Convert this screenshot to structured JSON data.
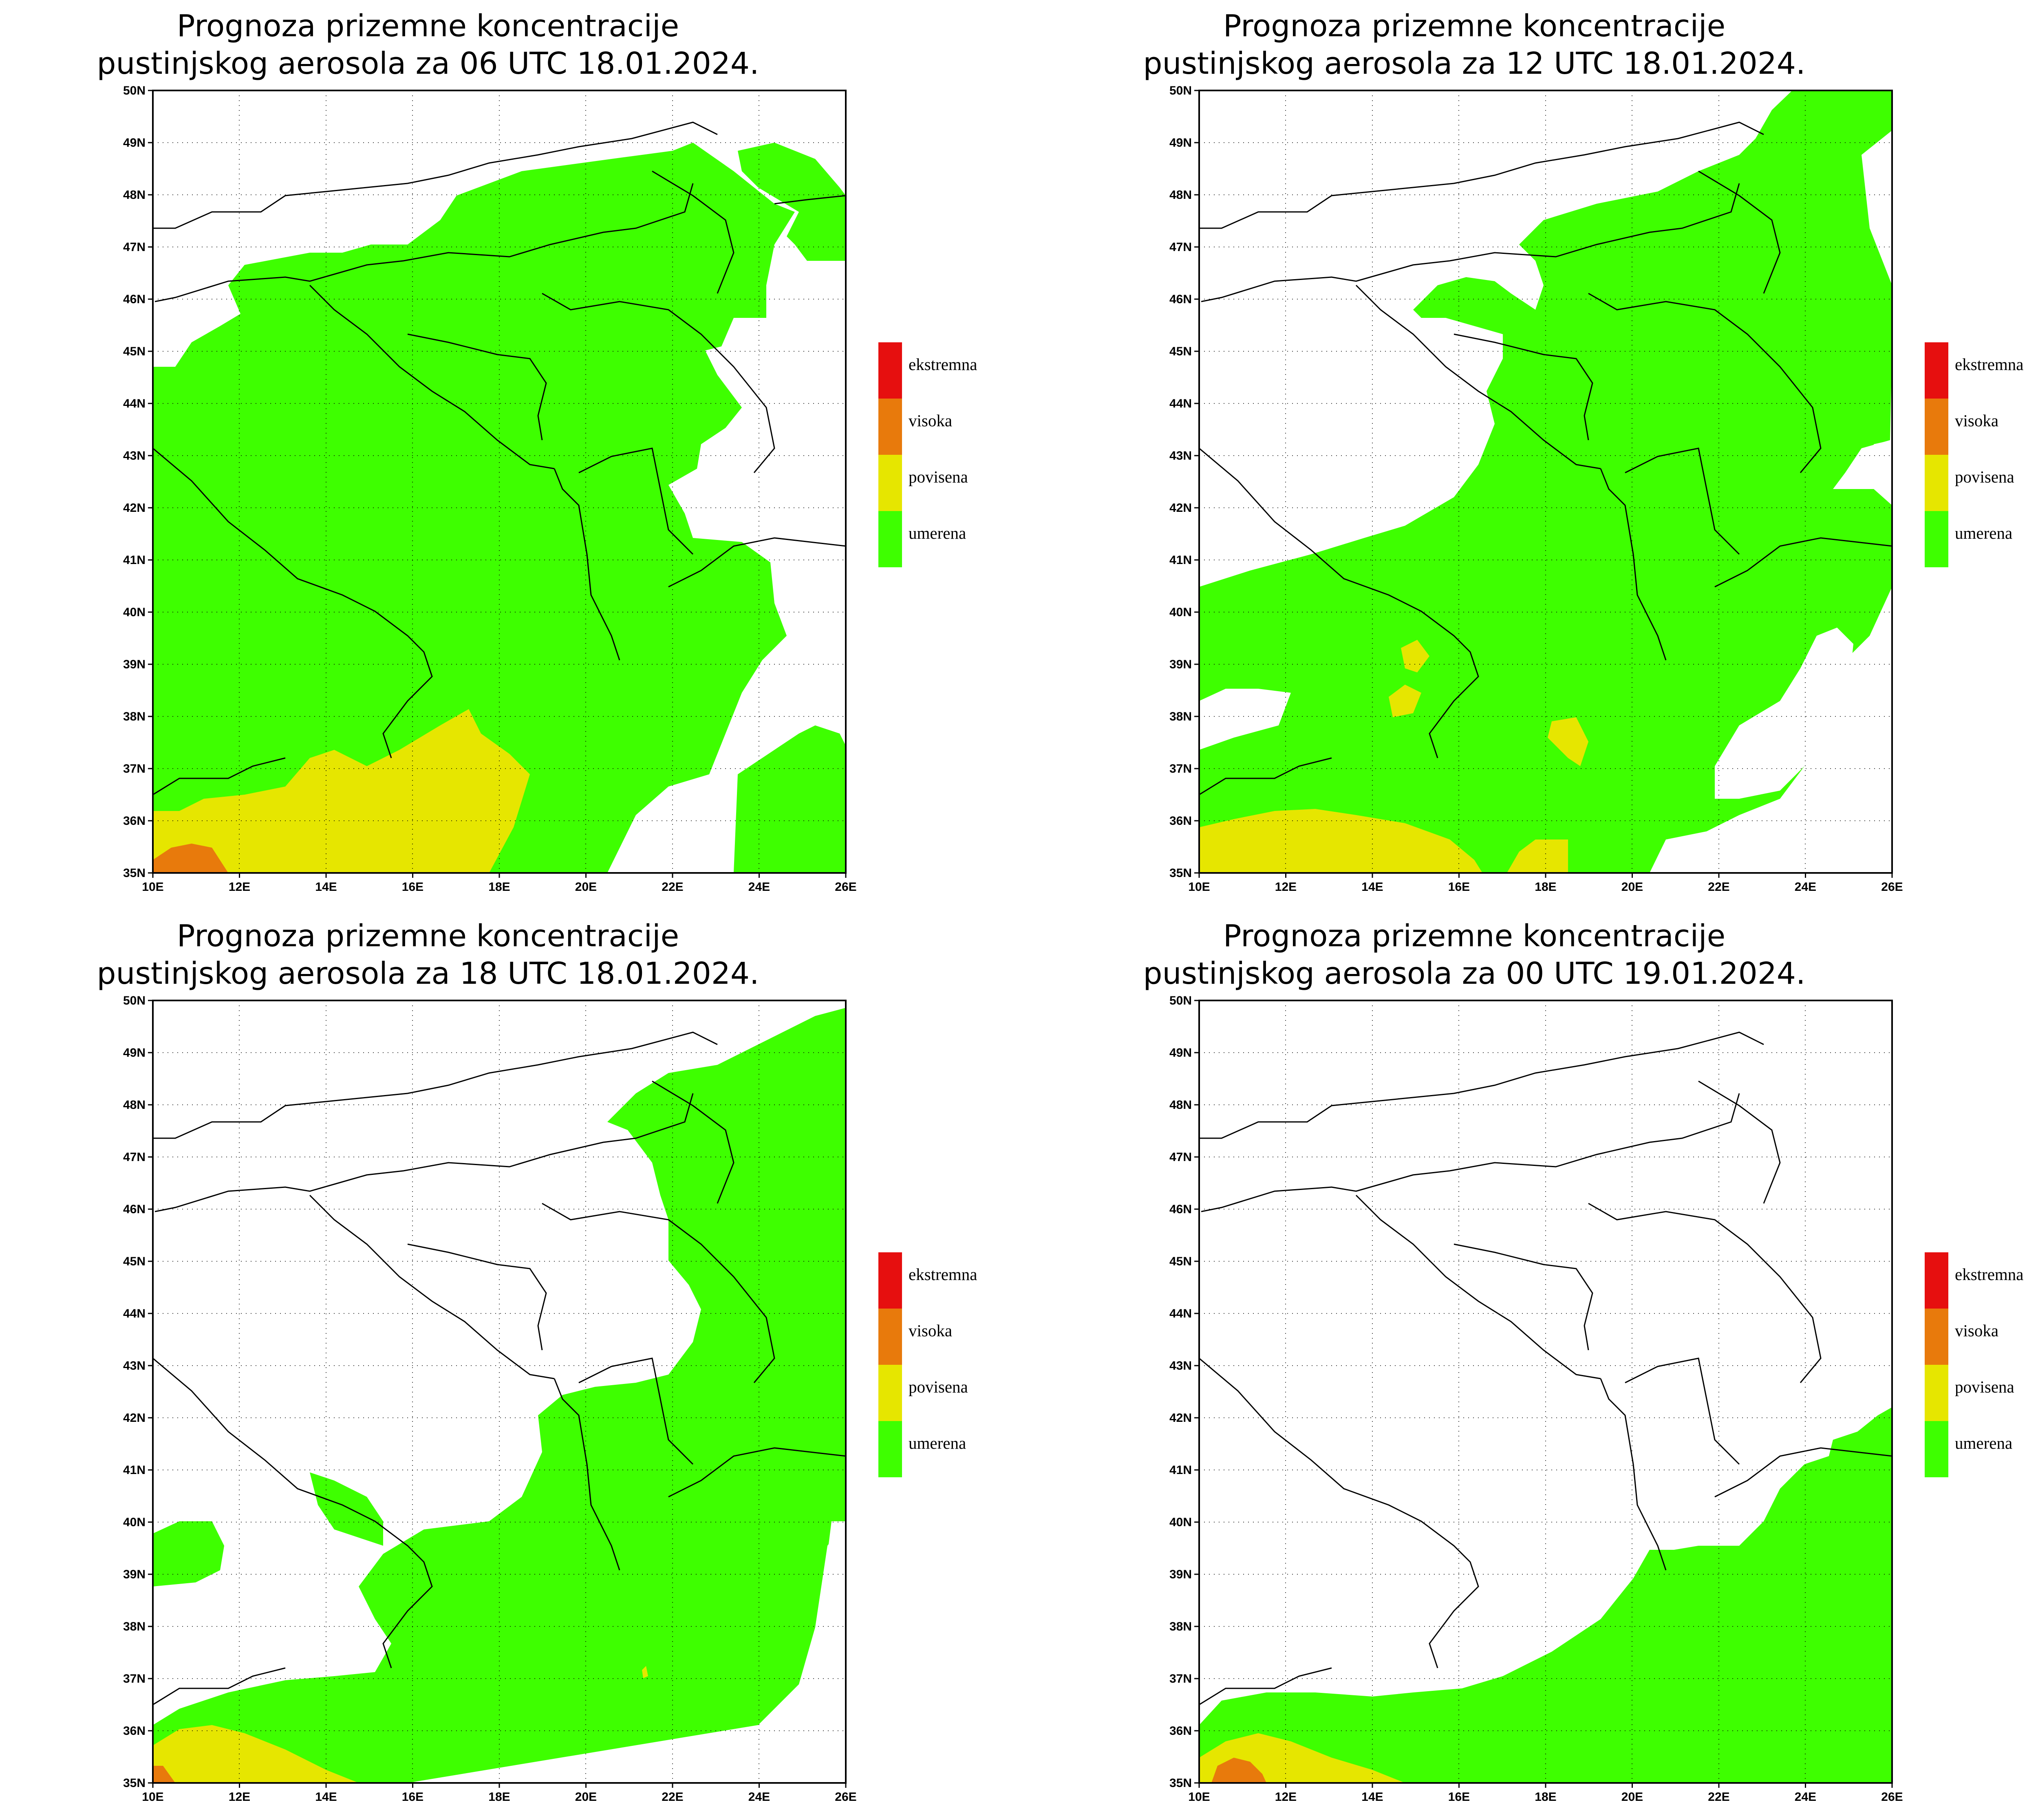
{
  "panels": [
    {
      "title_line1": "Prognoza prizemne koncentracije",
      "title_line2": "pustinjskog aerosola za 06 UTC 18.01.2024."
    },
    {
      "title_line1": "Prognoza prizemne koncentracije",
      "title_line2": "pustinjskog aerosola za 12 UTC 18.01.2024."
    },
    {
      "title_line1": "Prognoza prizemne koncentracije",
      "title_line2": "pustinjskog aerosola za 18 UTC 18.01.2024."
    },
    {
      "title_line1": "Prognoza prizemne koncentracije",
      "title_line2": "pustinjskog aerosola za 00 UTC 19.01.2024."
    }
  ],
  "axes": {
    "x_ticks": [
      "10E",
      "12E",
      "14E",
      "16E",
      "18E",
      "20E",
      "22E",
      "24E",
      "26E"
    ],
    "y_ticks": [
      "35N",
      "36N",
      "37N",
      "38N",
      "39N",
      "40N",
      "41N",
      "42N",
      "43N",
      "44N",
      "45N",
      "46N",
      "47N",
      "48N",
      "49N",
      "50N"
    ]
  },
  "legend": [
    {
      "label": "ekstremna",
      "color": "#e60f0f"
    },
    {
      "label": "visoka",
      "color": "#e87a0c"
    },
    {
      "label": "povisena",
      "color": "#e6e600"
    },
    {
      "label": "umerena",
      "color": "#3eff00"
    }
  ]
}
